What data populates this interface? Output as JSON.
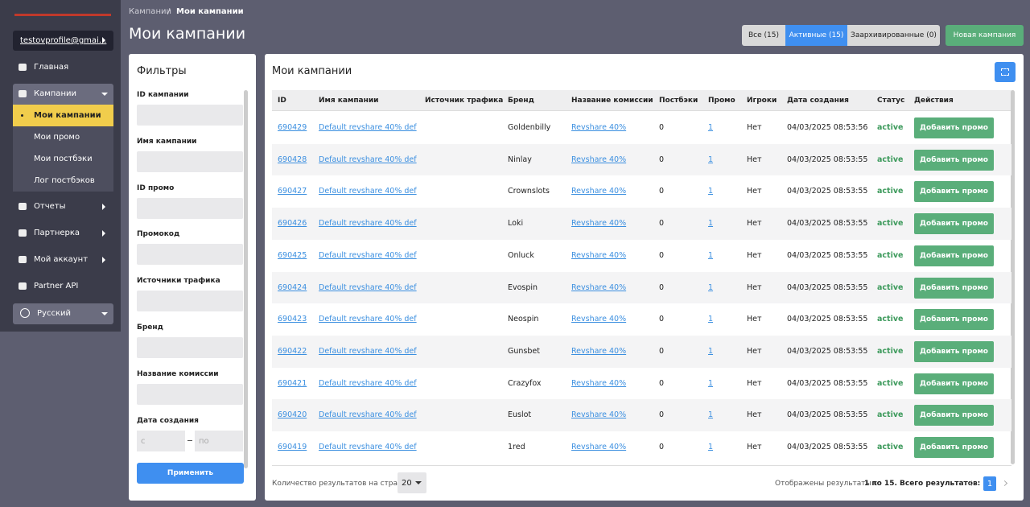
{
  "sidebar": {
    "account": "testovprofile@gmai...",
    "menu_top": [
      "Главная",
      "Кампании"
    ],
    "submenu": [
      "Мои кампании",
      "Мои промо",
      "Мои постбэки",
      "Лог постбэков"
    ],
    "menu_bottom": [
      "Отчеты",
      "Партнерка",
      "Мой аккаунт",
      "Partner API"
    ],
    "language": "Русский"
  },
  "breadcrumb": [
    "Кампании",
    "Мои кампании"
  ],
  "page_title": "Мои кампании",
  "tabs": [
    "Все (15)",
    "Активные (15)",
    "Заархивированные (0)"
  ],
  "new_button": "Новая кампания",
  "filters": {
    "title": "Фильтры",
    "fields": [
      "ID кампании",
      "Имя кампании",
      "ID промо",
      "Промокод",
      "Источники трафика",
      "Бренд",
      "Название комиссии",
      "Дата создания"
    ],
    "date_from": "с",
    "date_to": "по",
    "apply": "Применить"
  },
  "table": {
    "title": "Мои кампании",
    "columns": [
      "ID",
      "Имя кампании",
      "Источник трафика",
      "Бренд",
      "Название комиссии",
      "Постбэки",
      "Промо",
      "Игроки",
      "Дата создания",
      "Статус",
      "Действия"
    ],
    "rows": [
      {
        "id": "690429",
        "name": "Default revshare 40% def",
        "brand": "Goldenbilly",
        "commission": "Revshare 40%",
        "postbacks": "0",
        "promo": "1",
        "players": "Нет",
        "created": "04/03/2025 08:53:56",
        "status": "active",
        "action": "Добавить промо"
      },
      {
        "id": "690428",
        "name": "Default revshare 40% def",
        "brand": "Ninlay",
        "commission": "Revshare 40%",
        "postbacks": "0",
        "promo": "1",
        "players": "Нет",
        "created": "04/03/2025 08:53:55",
        "status": "active",
        "action": "Добавить промо"
      },
      {
        "id": "690427",
        "name": "Default revshare 40% def",
        "brand": "Crownslots",
        "commission": "Revshare 40%",
        "postbacks": "0",
        "promo": "1",
        "players": "Нет",
        "created": "04/03/2025 08:53:55",
        "status": "active",
        "action": "Добавить промо"
      },
      {
        "id": "690426",
        "name": "Default revshare 40% def",
        "brand": "Loki",
        "commission": "Revshare 40%",
        "postbacks": "0",
        "promo": "1",
        "players": "Нет",
        "created": "04/03/2025 08:53:55",
        "status": "active",
        "action": "Добавить промо"
      },
      {
        "id": "690425",
        "name": "Default revshare 40% def",
        "brand": "Onluck",
        "commission": "Revshare 40%",
        "postbacks": "0",
        "promo": "1",
        "players": "Нет",
        "created": "04/03/2025 08:53:55",
        "status": "active",
        "action": "Добавить промо"
      },
      {
        "id": "690424",
        "name": "Default revshare 40% def",
        "brand": "Evospin",
        "commission": "Revshare 40%",
        "postbacks": "0",
        "promo": "1",
        "players": "Нет",
        "created": "04/03/2025 08:53:55",
        "status": "active",
        "action": "Добавить промо"
      },
      {
        "id": "690423",
        "name": "Default revshare 40% def",
        "brand": "Neospin",
        "commission": "Revshare 40%",
        "postbacks": "0",
        "promo": "1",
        "players": "Нет",
        "created": "04/03/2025 08:53:55",
        "status": "active",
        "action": "Добавить промо"
      },
      {
        "id": "690422",
        "name": "Default revshare 40% def",
        "brand": "Gunsbet",
        "commission": "Revshare 40%",
        "postbacks": "0",
        "promo": "1",
        "players": "Нет",
        "created": "04/03/2025 08:53:55",
        "status": "active",
        "action": "Добавить промо"
      },
      {
        "id": "690421",
        "name": "Default revshare 40% def",
        "brand": "Crazyfox",
        "commission": "Revshare 40%",
        "postbacks": "0",
        "promo": "1",
        "players": "Нет",
        "created": "04/03/2025 08:53:55",
        "status": "active",
        "action": "Добавить промо"
      },
      {
        "id": "690420",
        "name": "Default revshare 40% def",
        "brand": "Euslot",
        "commission": "Revshare 40%",
        "postbacks": "0",
        "promo": "1",
        "players": "Нет",
        "created": "04/03/2025 08:53:55",
        "status": "active",
        "action": "Добавить промо"
      },
      {
        "id": "690419",
        "name": "Default revshare 40% def",
        "brand": "1red",
        "commission": "Revshare 40%",
        "postbacks": "0",
        "promo": "1",
        "players": "Нет",
        "created": "04/03/2025 08:53:55",
        "status": "active",
        "action": "Добавить промо"
      }
    ]
  },
  "footer": {
    "per_page_label": "Количество результатов на странице",
    "per_page": "20",
    "info_prefix": "Отображены результаты с",
    "info_bold": "1 по 15. Всего результатов: 15",
    "page": "1"
  }
}
